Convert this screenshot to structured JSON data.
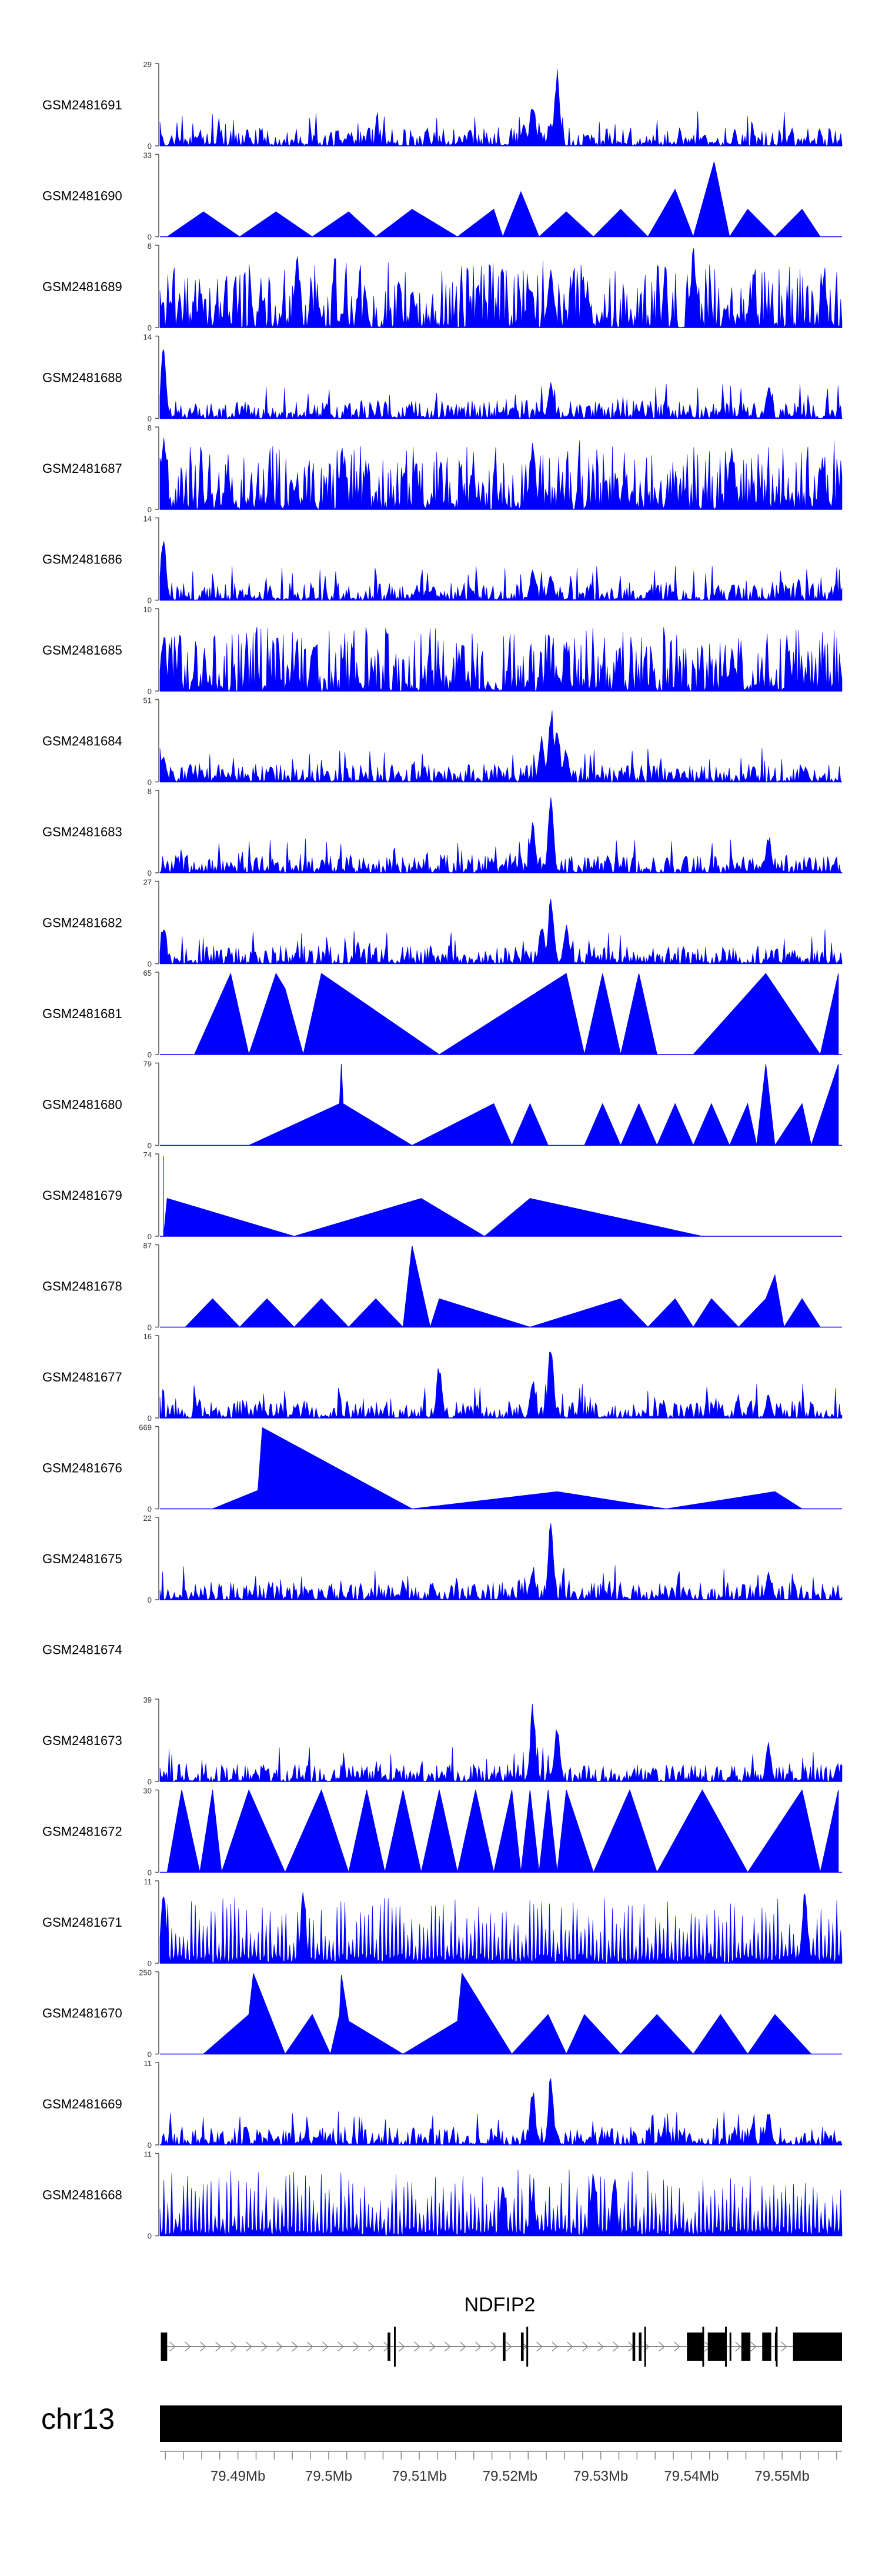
{
  "chart_data": {
    "type": "area",
    "title": "",
    "chromosome": "chr13",
    "gene": "NDFIP2",
    "x_unit": "Mb",
    "xlim": [
      79.4814,
      79.5566
    ],
    "x_ticks": [
      79.49,
      79.5,
      79.51,
      79.52,
      79.53,
      79.54,
      79.55
    ],
    "x_tick_labels": [
      "79.49Mb",
      "79.5Mb",
      "79.51Mb",
      "79.52Mb",
      "79.53Mb",
      "79.54Mb",
      "79.55Mb"
    ],
    "tracks": [
      {
        "name": "GSM2481691",
        "ymax": 29,
        "ymin_label": "0",
        "ymax_label": "29",
        "style": "dense",
        "peaks": [
          [
            79.5215,
            8
          ],
          [
            79.5225,
            17
          ],
          [
            79.5252,
            28
          ],
          [
            79.5245,
            9
          ]
        ]
      },
      {
        "name": "GSM2481690",
        "ymax": 33,
        "ymin_label": "0",
        "ymax_label": "33",
        "style": "sparse",
        "points": [
          [
            79.4822,
            0
          ],
          [
            79.4862,
            10
          ],
          [
            79.4902,
            0
          ],
          [
            79.4942,
            10
          ],
          [
            79.4982,
            0
          ],
          [
            79.5022,
            10
          ],
          [
            79.5052,
            0
          ],
          [
            79.5092,
            11
          ],
          [
            79.5142,
            0
          ],
          [
            79.5182,
            11
          ],
          [
            79.5192,
            0
          ],
          [
            79.5212,
            18
          ],
          [
            79.5232,
            0
          ],
          [
            79.5262,
            10
          ],
          [
            79.5292,
            0
          ],
          [
            79.5322,
            11
          ],
          [
            79.5352,
            0
          ],
          [
            79.5382,
            19
          ],
          [
            79.5402,
            0
          ],
          [
            79.5425,
            30
          ],
          [
            79.5442,
            0
          ],
          [
            79.5462,
            11
          ],
          [
            79.5492,
            0
          ],
          [
            79.5522,
            11
          ],
          [
            79.5542,
            0
          ]
        ]
      },
      {
        "name": "GSM2481689",
        "ymax": 8,
        "ymin_label": "0",
        "ymax_label": "8",
        "style": "noise",
        "peaks": [
          [
            79.4965,
            7.5
          ],
          [
            79.5402,
            8
          ],
          [
            79.5245,
            6
          ]
        ]
      },
      {
        "name": "GSM2481688",
        "ymax": 14,
        "ymin_label": "0",
        "ymax_label": "14",
        "style": "dense",
        "peaks": [
          [
            79.4818,
            13
          ],
          [
            79.5245,
            7
          ],
          [
            79.5485,
            6
          ]
        ]
      },
      {
        "name": "GSM2481687",
        "ymax": 8,
        "ymin_label": "0",
        "ymax_label": "8",
        "style": "noise",
        "peaks": [
          [
            79.4818,
            7
          ],
          [
            79.5225,
            7.5
          ],
          [
            79.5445,
            6.5
          ]
        ]
      },
      {
        "name": "GSM2481686",
        "ymax": 14,
        "ymin_label": "0",
        "ymax_label": "14",
        "style": "dense",
        "peaks": [
          [
            79.4818,
            12
          ],
          [
            79.5225,
            6
          ],
          [
            79.5245,
            5
          ]
        ]
      },
      {
        "name": "GSM2481685",
        "ymax": 10,
        "ymin_label": "0",
        "ymax_label": "10",
        "style": "noise",
        "peaks": [
          [
            79.4818,
            7
          ],
          [
            79.5262,
            6
          ],
          [
            79.5445,
            5
          ]
        ]
      },
      {
        "name": "GSM2481684",
        "ymax": 51,
        "ymin_label": "0",
        "ymax_label": "51",
        "style": "dense",
        "peaks": [
          [
            79.4818,
            20
          ],
          [
            79.5235,
            32
          ],
          [
            79.5245,
            50
          ],
          [
            79.5252,
            40
          ],
          [
            79.5262,
            22
          ]
        ]
      },
      {
        "name": "GSM2481683",
        "ymax": 8,
        "ymin_label": "0",
        "ymax_label": "8",
        "style": "dense",
        "peaks": [
          [
            79.5245,
            8
          ],
          [
            79.5225,
            5
          ],
          [
            79.5485,
            4
          ]
        ]
      },
      {
        "name": "GSM2481682",
        "ymax": 27,
        "ymin_label": "0",
        "ymax_label": "27",
        "style": "dense",
        "peaks": [
          [
            79.4818,
            12
          ],
          [
            79.5245,
            26
          ],
          [
            79.5235,
            15
          ],
          [
            79.5262,
            14
          ]
        ]
      },
      {
        "name": "GSM2481681",
        "ymax": 65,
        "ymin_label": "0",
        "ymax_label": "65",
        "style": "sparse",
        "points": [
          [
            79.4852,
            0
          ],
          [
            79.4892,
            64
          ],
          [
            79.4912,
            0
          ],
          [
            79.4942,
            64
          ],
          [
            79.4952,
            52
          ],
          [
            79.4972,
            0
          ],
          [
            79.4992,
            64
          ],
          [
            79.5122,
            0
          ],
          [
            79.5262,
            64
          ],
          [
            79.5282,
            0
          ],
          [
            79.5302,
            64
          ],
          [
            79.5322,
            0
          ],
          [
            79.5342,
            64
          ],
          [
            79.5362,
            0
          ],
          [
            79.5402,
            0
          ],
          [
            79.5482,
            64
          ],
          [
            79.5542,
            0
          ],
          [
            79.5562,
            64
          ],
          [
            79.5562,
            0
          ]
        ]
      },
      {
        "name": "GSM2481680",
        "ymax": 79,
        "ymin_label": "0",
        "ymax_label": "79",
        "style": "sparse",
        "points": [
          [
            79.4912,
            0
          ],
          [
            79.5012,
            40
          ],
          [
            79.5014,
            78
          ],
          [
            79.5016,
            40
          ],
          [
            79.5092,
            0
          ],
          [
            79.5182,
            40
          ],
          [
            79.5202,
            0
          ],
          [
            79.5222,
            40
          ],
          [
            79.5242,
            0
          ],
          [
            79.5282,
            0
          ],
          [
            79.5302,
            40
          ],
          [
            79.5322,
            0
          ],
          [
            79.5342,
            40
          ],
          [
            79.5362,
            0
          ],
          [
            79.5382,
            40
          ],
          [
            79.5402,
            0
          ],
          [
            79.5422,
            40
          ],
          [
            79.5442,
            0
          ],
          [
            79.5462,
            40
          ],
          [
            79.5472,
            0
          ],
          [
            79.5482,
            78
          ],
          [
            79.5492,
            0
          ],
          [
            79.5522,
            40
          ],
          [
            79.5532,
            0
          ],
          [
            79.5562,
            78
          ],
          [
            79.5562,
            0
          ]
        ]
      },
      {
        "name": "GSM2481679",
        "ymax": 74,
        "ymin_label": "0",
        "ymax_label": "74",
        "style": "sparse",
        "points": [
          [
            79.4818,
            72
          ],
          [
            79.4818,
            0
          ],
          [
            79.4822,
            34
          ],
          [
            79.4962,
            0
          ],
          [
            79.5102,
            34
          ],
          [
            79.5172,
            0
          ],
          [
            79.5222,
            34
          ],
          [
            79.5412,
            0
          ]
        ]
      },
      {
        "name": "GSM2481678",
        "ymax": 87,
        "ymin_label": "0",
        "ymax_label": "87",
        "style": "sparse",
        "points": [
          [
            79.4842,
            0
          ],
          [
            79.4872,
            30
          ],
          [
            79.4902,
            0
          ],
          [
            79.4932,
            30
          ],
          [
            79.4962,
            0
          ],
          [
            79.4992,
            30
          ],
          [
            79.5022,
            0
          ],
          [
            79.5052,
            30
          ],
          [
            79.5082,
            0
          ],
          [
            79.5092,
            86
          ],
          [
            79.5112,
            0
          ],
          [
            79.5122,
            30
          ],
          [
            79.5222,
            0
          ],
          [
            79.5322,
            30
          ],
          [
            79.5352,
            0
          ],
          [
            79.5382,
            30
          ],
          [
            79.5402,
            0
          ],
          [
            79.5422,
            30
          ],
          [
            79.5452,
            0
          ],
          [
            79.5482,
            30
          ],
          [
            79.5492,
            55
          ],
          [
            79.5502,
            0
          ],
          [
            79.5522,
            30
          ],
          [
            79.5542,
            0
          ]
        ]
      },
      {
        "name": "GSM2481677",
        "ymax": 16,
        "ymin_label": "0",
        "ymax_label": "16",
        "style": "dense",
        "peaks": [
          [
            79.5122,
            11
          ],
          [
            79.5225,
            8
          ],
          [
            79.5245,
            16
          ],
          [
            79.5485,
            5
          ]
        ]
      },
      {
        "name": "GSM2481676",
        "ymax": 669,
        "ymin_label": "0",
        "ymax_label": "669",
        "style": "sparse",
        "points": [
          [
            79.4872,
            0
          ],
          [
            79.4922,
            150
          ],
          [
            79.4927,
            660
          ],
          [
            79.5092,
            0
          ],
          [
            79.5252,
            140
          ],
          [
            79.5372,
            0
          ],
          [
            79.5492,
            140
          ],
          [
            79.5522,
            0
          ]
        ]
      },
      {
        "name": "GSM2481675",
        "ymax": 22,
        "ymin_label": "0",
        "ymax_label": "22",
        "style": "dense",
        "peaks": [
          [
            79.5245,
            22
          ],
          [
            79.5225,
            9
          ],
          [
            79.5485,
            8
          ]
        ]
      },
      {
        "name": "GSM2481674",
        "ymax": null,
        "style": "empty"
      },
      {
        "name": "GSM2481673",
        "ymax": 39,
        "ymin_label": "0",
        "ymax_label": "39",
        "style": "dense",
        "peaks": [
          [
            79.5225,
            38
          ],
          [
            79.5252,
            28
          ],
          [
            79.5485,
            20
          ]
        ]
      },
      {
        "name": "GSM2481672",
        "ymax": 30,
        "ymin_label": "0",
        "ymax_label": "30",
        "style": "sparse",
        "points": [
          [
            79.4822,
            0
          ],
          [
            79.4838,
            30
          ],
          [
            79.4858,
            0
          ],
          [
            79.4872,
            30
          ],
          [
            79.4882,
            0
          ],
          [
            79.4912,
            30
          ],
          [
            79.4952,
            0
          ],
          [
            79.4992,
            30
          ],
          [
            79.5022,
            0
          ],
          [
            79.5042,
            30
          ],
          [
            79.5062,
            0
          ],
          [
            79.5082,
            30
          ],
          [
            79.5102,
            0
          ],
          [
            79.5122,
            30
          ],
          [
            79.5142,
            0
          ],
          [
            79.5162,
            30
          ],
          [
            79.5182,
            0
          ],
          [
            79.5202,
            30
          ],
          [
            79.5212,
            0
          ],
          [
            79.5222,
            30
          ],
          [
            79.5232,
            0
          ],
          [
            79.5242,
            30
          ],
          [
            79.5252,
            0
          ],
          [
            79.5262,
            30
          ],
          [
            79.5292,
            0
          ],
          [
            79.5332,
            30
          ],
          [
            79.5362,
            0
          ],
          [
            79.5412,
            30
          ],
          [
            79.5462,
            0
          ],
          [
            79.5522,
            30
          ],
          [
            79.5542,
            0
          ],
          [
            79.5562,
            30
          ],
          [
            79.5562,
            0
          ]
        ]
      },
      {
        "name": "GSM2481671",
        "ymax": 11,
        "ymin_label": "0",
        "ymax_label": "11",
        "style": "spikes",
        "peaks": [
          [
            79.4818,
            10
          ],
          [
            79.4972,
            10
          ],
          [
            79.5525,
            11
          ]
        ]
      },
      {
        "name": "GSM2481670",
        "ymax": 250,
        "ymin_label": "0",
        "ymax_label": "250",
        "style": "sparse",
        "points": [
          [
            79.4862,
            0
          ],
          [
            79.4912,
            120
          ],
          [
            79.4917,
            245
          ],
          [
            79.4952,
            0
          ],
          [
            79.4982,
            120
          ],
          [
            79.5002,
            0
          ],
          [
            79.5012,
            120
          ],
          [
            79.5014,
            240
          ],
          [
            79.5022,
            100
          ],
          [
            79.5082,
            0
          ],
          [
            79.5142,
            100
          ],
          [
            79.5147,
            245
          ],
          [
            79.5202,
            0
          ],
          [
            79.5242,
            120
          ],
          [
            79.5262,
            0
          ],
          [
            79.5282,
            120
          ],
          [
            79.5322,
            0
          ],
          [
            79.5362,
            120
          ],
          [
            79.5402,
            0
          ],
          [
            79.5432,
            120
          ],
          [
            79.5462,
            0
          ],
          [
            79.5492,
            120
          ],
          [
            79.5532,
            0
          ]
        ]
      },
      {
        "name": "GSM2481669",
        "ymax": 11,
        "ymin_label": "0",
        "ymax_label": "11",
        "style": "dense",
        "peaks": [
          [
            79.5245,
            10
          ],
          [
            79.5225,
            8
          ],
          [
            79.5485,
            5
          ]
        ]
      },
      {
        "name": "GSM2481668",
        "ymax": 11,
        "ymin_label": "0",
        "ymax_label": "11",
        "style": "spikes",
        "peaks": [
          [
            79.5192,
            7
          ],
          [
            79.5292,
            10
          ],
          [
            79.5315,
            8
          ],
          [
            79.5225,
            6
          ]
        ]
      }
    ],
    "gene_model": {
      "name": "NDFIP2",
      "strand": "+",
      "exons": [
        [
          79.4815,
          79.4822
        ],
        [
          79.5065,
          79.5068
        ],
        [
          79.5192,
          79.5195
        ],
        [
          79.5212,
          79.5215
        ],
        [
          79.5335,
          79.5338
        ],
        [
          79.5342,
          79.5345
        ],
        [
          79.5395,
          79.5412
        ],
        [
          79.5418,
          79.5437
        ],
        [
          79.5442,
          79.5443
        ],
        [
          79.5455,
          79.5465
        ],
        [
          79.5478,
          79.5488
        ],
        [
          79.5492,
          79.5493
        ],
        [
          79.5512,
          79.5566
        ]
      ],
      "tall_marks": [
        79.5072,
        79.5218,
        79.5348,
        79.5412,
        79.5437,
        79.5493
      ]
    }
  }
}
